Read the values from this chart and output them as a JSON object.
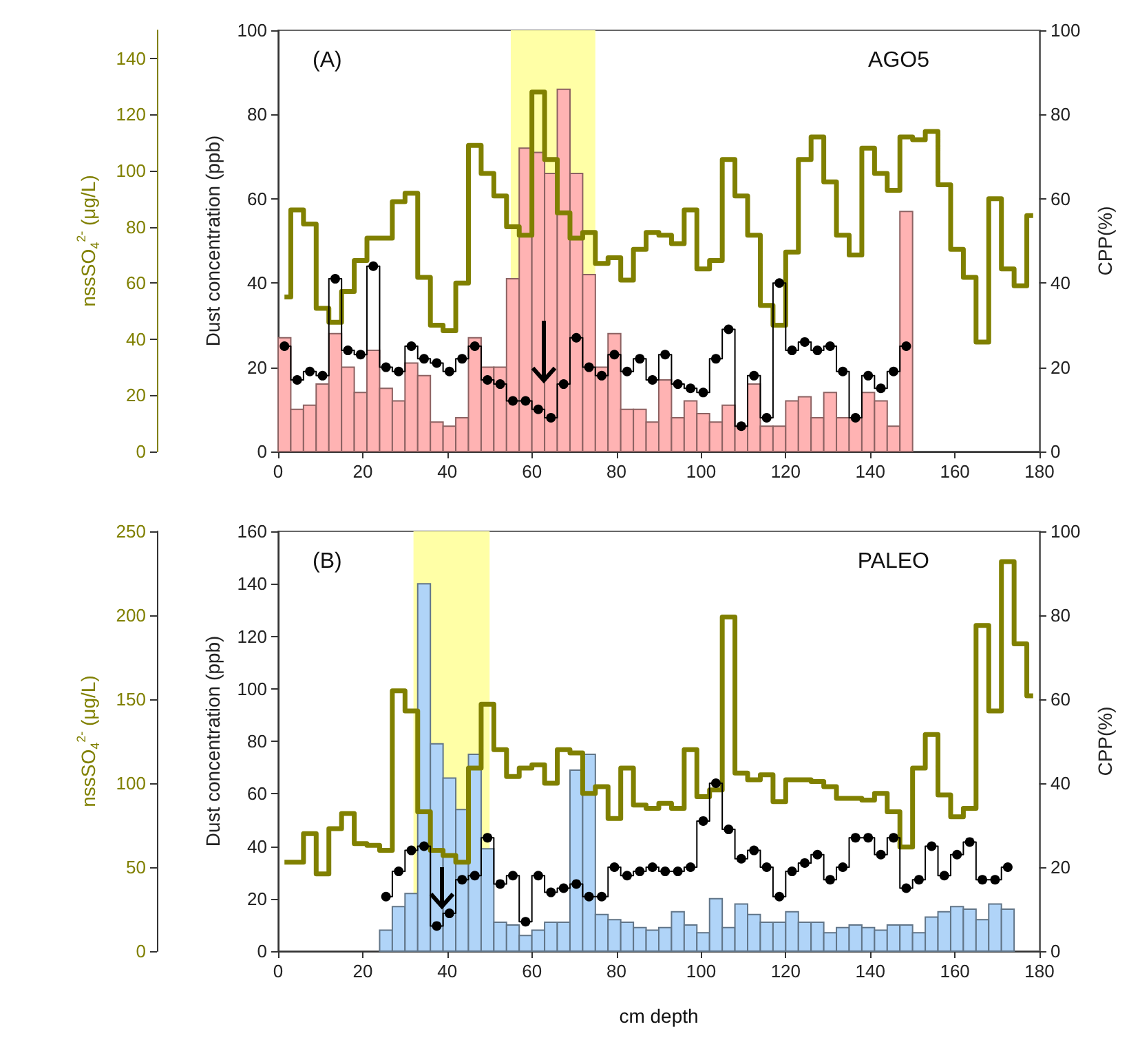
{
  "chart_data": [
    {
      "type": "histogram",
      "xlim": [
        0,
        180
      ],
      "xticks": [
        0,
        20,
        40,
        60,
        80,
        100,
        120,
        140,
        160,
        180
      ],
      "ylabel": "Dust concentration (ppb)",
      "ylim": [
        0,
        100
      ],
      "yticks": [
        0,
        20,
        40,
        60,
        80,
        100
      ],
      "y2label": "CPP(%)",
      "y2lim": [
        0,
        100
      ],
      "y2ticks": [
        0,
        20,
        40,
        60,
        80,
        100
      ],
      "y3label": "nssSO$_{4}$$^{2-}$ (μg/L)",
      "y3lim": [
        0,
        150
      ],
      "y3ticks": [
        0,
        20,
        40,
        60,
        80,
        100,
        120,
        140
      ],
      "annotations": [
        "(A)",
        "AGO5"
      ],
      "bands": [
        {
          "axis": "x",
          "from": 55,
          "to": 75,
          "color": "#ffffa6"
        }
      ],
      "series": [
        {
          "color": "#ffb3b3",
          "bins": [
            0,
            3,
            6,
            9,
            12,
            15,
            18,
            21,
            24,
            27,
            30,
            33,
            36,
            39,
            42,
            45,
            48,
            51,
            54,
            57,
            60,
            63,
            66,
            69,
            72,
            75,
            78,
            81,
            84,
            87,
            90,
            93,
            96,
            99,
            102,
            105,
            108,
            111,
            114,
            117,
            120,
            123,
            126,
            129,
            132,
            135,
            138,
            141,
            144,
            147,
            150
          ],
          "values": [
            27,
            10,
            11,
            16,
            28,
            20,
            14,
            24,
            15,
            12,
            21,
            18,
            7,
            6,
            8,
            27,
            20,
            20,
            41,
            72,
            71,
            66,
            86,
            66,
            42,
            20,
            28,
            10,
            10,
            7,
            17,
            8,
            12,
            9,
            7,
            11,
            6,
            16,
            6,
            6,
            12,
            13,
            8,
            14,
            8,
            8,
            14,
            12,
            6,
            57
          ]
        },
        {
          "type": "step",
          "axis": "y3",
          "color": "#808000",
          "marker": "none",
          "x": [
            1.5,
            4.5,
            7.5,
            10.5,
            13.5,
            16.5,
            19.5,
            22.5,
            25.5,
            28.5,
            31.5,
            34.5,
            37.5,
            40.5,
            43.5,
            46.5,
            49.5,
            52.5,
            55.5,
            58.5,
            61.5,
            64.5,
            67.5,
            70.5,
            73.5,
            76.5,
            79.5,
            82.5,
            85.5,
            88.5,
            91.5,
            94.5,
            97.5,
            100.5,
            103.5,
            106.5,
            109.5,
            112.5,
            115.5,
            118.5,
            121.5,
            124.5,
            127.5,
            130.5,
            133.5,
            136.5,
            139.5,
            142.5,
            145.5,
            148.5,
            151.5,
            154.5,
            157.5,
            160.5,
            163.5,
            166.5,
            169.5,
            172.5,
            175.5,
            178.5
          ],
          "values": [
            55,
            86,
            81,
            51,
            46,
            57,
            68,
            76,
            76,
            89,
            92,
            62,
            45,
            43,
            60,
            109,
            99,
            91,
            80,
            77,
            128,
            104,
            85,
            76,
            78,
            67,
            69,
            61,
            72,
            78,
            77,
            74,
            86,
            65,
            68,
            104,
            91,
            77,
            52,
            45,
            71,
            104,
            112,
            96,
            77,
            70,
            108,
            99,
            93,
            112,
            111,
            114,
            95,
            72,
            62,
            39,
            90,
            65,
            59,
            84
          ]
        },
        {
          "type": "step",
          "axis": "y2",
          "color": "#000000",
          "marker": "circle",
          "x": [
            1.5,
            4.5,
            7.5,
            10.5,
            13.5,
            16.5,
            19.5,
            22.5,
            25.5,
            28.5,
            31.5,
            34.5,
            37.5,
            40.5,
            43.5,
            46.5,
            49.5,
            52.5,
            55.5,
            58.5,
            61.5,
            64.5,
            67.5,
            70.5,
            73.5,
            76.5,
            79.5,
            82.5,
            85.5,
            88.5,
            91.5,
            94.5,
            97.5,
            100.5,
            103.5,
            106.5,
            109.5,
            112.5,
            115.5,
            118.5,
            121.5,
            124.5,
            127.5,
            130.5,
            133.5,
            136.5,
            139.5,
            142.5,
            145.5,
            148.5
          ],
          "values": [
            25,
            17,
            19,
            18,
            41,
            24,
            23,
            44,
            20,
            19,
            25,
            22,
            21,
            19,
            22,
            25,
            17,
            16,
            12,
            12,
            10,
            8,
            16,
            27,
            20,
            18,
            23,
            19,
            22,
            17,
            23,
            16,
            15,
            14,
            22,
            29,
            6,
            18,
            8,
            40,
            24,
            26,
            24,
            25,
            19,
            8,
            18,
            15,
            19,
            25
          ]
        }
      ]
    },
    {
      "type": "histogram",
      "xlabel": "cm depth",
      "xlim": [
        0,
        180
      ],
      "xticks": [
        0,
        20,
        40,
        60,
        80,
        100,
        120,
        140,
        160,
        180
      ],
      "ylabel": "Dust concentration (ppb)",
      "ylim": [
        0,
        160
      ],
      "yticks": [
        0,
        20,
        40,
        60,
        80,
        100,
        120,
        140,
        160
      ],
      "y2label": "CPP(%)",
      "y2lim": [
        0,
        100
      ],
      "y2ticks": [
        0,
        20,
        40,
        60,
        80,
        100
      ],
      "y3label": "nssSO$_{4}$$^{2-}$ (μg/L)",
      "y3lim": [
        0,
        250
      ],
      "y3ticks": [
        0,
        50,
        100,
        150,
        200,
        250
      ],
      "annotations": [
        "(B)",
        "PALEO"
      ],
      "bands": [
        {
          "axis": "x",
          "from": 32,
          "to": 50,
          "color": "#ffffa6"
        }
      ],
      "series": [
        {
          "color": "#b0d4f8",
          "bins": [
            24,
            27,
            30,
            33,
            36,
            39,
            42,
            45,
            48,
            51,
            54,
            57,
            60,
            63,
            66,
            69,
            72,
            75,
            78,
            81,
            84,
            87,
            90,
            93,
            96,
            99,
            102,
            105,
            108,
            111,
            114,
            117,
            120,
            123,
            126,
            129,
            132,
            135,
            138,
            141,
            144,
            147,
            150,
            153,
            156,
            159,
            162,
            165,
            168,
            171,
            174
          ],
          "values": [
            8,
            17,
            22,
            140,
            79,
            66,
            54,
            75,
            39,
            11,
            10,
            6,
            8,
            11,
            11,
            69,
            75,
            14,
            12,
            11,
            9,
            8,
            9,
            15,
            10,
            7,
            20,
            9,
            18,
            14,
            11,
            11,
            15,
            11,
            11,
            7,
            9,
            10,
            9,
            8,
            10,
            10,
            7,
            13,
            15,
            17,
            16,
            12,
            18,
            16
          ]
        },
        {
          "type": "step",
          "axis": "y3",
          "color": "#808000",
          "marker": "none",
          "x": [
            1.5,
            4.5,
            7.5,
            10.5,
            13.5,
            16.5,
            19.5,
            22.5,
            25.5,
            28.5,
            31.5,
            34.5,
            37.5,
            40.5,
            43.5,
            46.5,
            49.5,
            52.5,
            55.5,
            58.5,
            61.5,
            64.5,
            67.5,
            70.5,
            73.5,
            76.5,
            79.5,
            82.5,
            85.5,
            88.5,
            91.5,
            94.5,
            97.5,
            100.5,
            103.5,
            106.5,
            109.5,
            112.5,
            115.5,
            118.5,
            121.5,
            124.5,
            127.5,
            130.5,
            133.5,
            136.5,
            139.5,
            142.5,
            145.5,
            148.5,
            151.5,
            154.5,
            157.5,
            160.5,
            163.5,
            166.5,
            169.5,
            172.5,
            175.5,
            178.5
          ],
          "values": [
            53,
            53,
            70,
            46,
            73,
            82,
            64,
            63,
            60,
            155,
            143,
            83,
            60,
            57,
            53,
            109,
            147,
            120,
            104,
            109,
            111,
            100,
            120,
            118,
            94,
            98,
            79,
            109,
            87,
            85,
            88,
            85,
            120,
            92,
            96,
            199,
            106,
            102,
            105,
            89,
            102,
            102,
            101,
            98,
            91,
            91,
            90,
            94,
            83,
            62,
            109,
            129,
            93,
            80,
            85,
            194,
            143,
            232,
            183,
            152
          ]
        },
        {
          "type": "step",
          "axis": "y2",
          "color": "#000000",
          "marker": "circle",
          "x": [
            25.5,
            28.5,
            31.5,
            34.5,
            37.5,
            40.5,
            43.5,
            46.5,
            49.5,
            52.5,
            55.5,
            58.5,
            61.5,
            64.5,
            67.5,
            70.5,
            73.5,
            76.5,
            79.5,
            82.5,
            85.5,
            88.5,
            91.5,
            94.5,
            97.5,
            100.5,
            103.5,
            106.5,
            109.5,
            112.5,
            115.5,
            118.5,
            121.5,
            124.5,
            127.5,
            130.5,
            133.5,
            136.5,
            139.5,
            142.5,
            145.5,
            148.5,
            151.5,
            154.5,
            157.5,
            160.5,
            163.5,
            166.5,
            169.5,
            172.5
          ],
          "values": [
            13,
            19,
            24,
            25,
            6,
            9,
            17,
            18,
            27,
            16,
            18,
            7,
            18,
            14,
            15,
            16,
            13,
            13,
            20,
            18,
            19,
            20,
            19,
            19,
            20,
            31,
            40,
            29,
            22,
            24,
            20,
            13,
            19,
            21,
            23,
            17,
            20,
            27,
            27,
            23,
            27,
            15,
            17,
            25,
            18,
            23,
            26,
            17,
            17,
            20
          ]
        }
      ]
    }
  ]
}
